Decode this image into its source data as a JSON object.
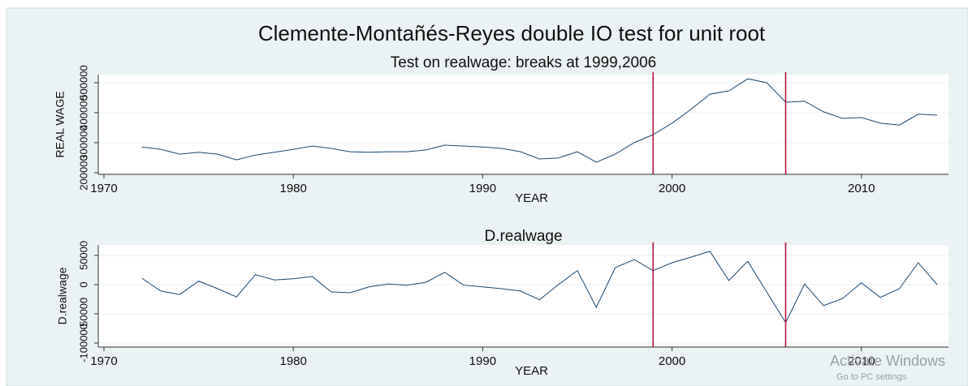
{
  "title": "Clemente-Montañés-Reyes double IO test for unit root",
  "watermark": {
    "line1": "Activate Windows",
    "line2": "Go to PC settings"
  },
  "chart_data": [
    {
      "type": "line",
      "title": "Test on realwage: breaks at 1999,2006",
      "x_label": "YEAR",
      "y_label": "REAL WAGE",
      "x": [
        1972,
        1973,
        1974,
        1975,
        1976,
        1977,
        1978,
        1979,
        1980,
        1981,
        1982,
        1983,
        1984,
        1985,
        1986,
        1987,
        1988,
        1989,
        1990,
        1991,
        1992,
        1993,
        1994,
        1995,
        1996,
        1997,
        1998,
        1999,
        2000,
        2001,
        2002,
        2003,
        2004,
        2005,
        2006,
        2007,
        2008,
        2009,
        2010,
        2011,
        2012,
        2013,
        2014
      ],
      "values": [
        286000,
        278000,
        262000,
        268000,
        262000,
        243000,
        259000,
        268000,
        278000,
        289000,
        281000,
        270000,
        268000,
        270000,
        270000,
        276000,
        292000,
        289000,
        286000,
        281000,
        270000,
        246000,
        249000,
        270000,
        235000,
        262000,
        300000,
        327000,
        365000,
        411000,
        462000,
        473000,
        513000,
        500000,
        435000,
        438000,
        403000,
        381000,
        384000,
        365000,
        359000,
        395000,
        392000
      ],
      "color": "#1a476f",
      "break_color": "#b5173f",
      "breaks": [
        1999,
        2006
      ],
      "xlim": [
        1969.7,
        2014.6
      ],
      "xticks": [
        1970,
        1980,
        1990,
        2000,
        2010
      ],
      "ylim": [
        194600,
        527000
      ],
      "yticks": [
        200000,
        300000,
        400000,
        500000
      ],
      "grid": true
    },
    {
      "type": "line",
      "title": "D.realwage",
      "x_label": "YEAR",
      "y_label": "D.realwage",
      "x": [
        1972,
        1973,
        1974,
        1975,
        1976,
        1977,
        1978,
        1979,
        1980,
        1981,
        1982,
        1983,
        1984,
        1985,
        1986,
        1987,
        1988,
        1989,
        1990,
        1991,
        1992,
        1993,
        1994,
        1995,
        1996,
        1997,
        1998,
        1999,
        2000,
        2001,
        2002,
        2003,
        2004,
        2005,
        2006,
        2007,
        2008,
        2009,
        2010,
        2011,
        2012,
        2013,
        2014
      ],
      "values": [
        11000,
        -11000,
        -17000,
        6000,
        -7000,
        -21000,
        17000,
        8000,
        10000,
        14000,
        -12500,
        -14000,
        -4000,
        1000,
        -1000,
        4000,
        21000,
        -1000,
        -4000,
        -7000,
        -11000,
        -26000,
        0,
        24000,
        -39000,
        29000,
        43000,
        24000,
        37500,
        47000,
        57000,
        7000,
        40000,
        -12500,
        -65000,
        1000,
        -36000,
        -24000,
        3000,
        -22000,
        -7000,
        37500,
        0
      ],
      "color": "#1a476f",
      "break_color": "#b5173f",
      "breaks": [
        1999,
        2006
      ],
      "xlim": [
        1969.7,
        2014.6
      ],
      "xticks": [
        1970,
        1980,
        1990,
        2000,
        2010
      ],
      "ylim": [
        -107000,
        68000
      ],
      "yticks": [
        -100000,
        -50000,
        0,
        50000
      ],
      "grid": true
    }
  ]
}
